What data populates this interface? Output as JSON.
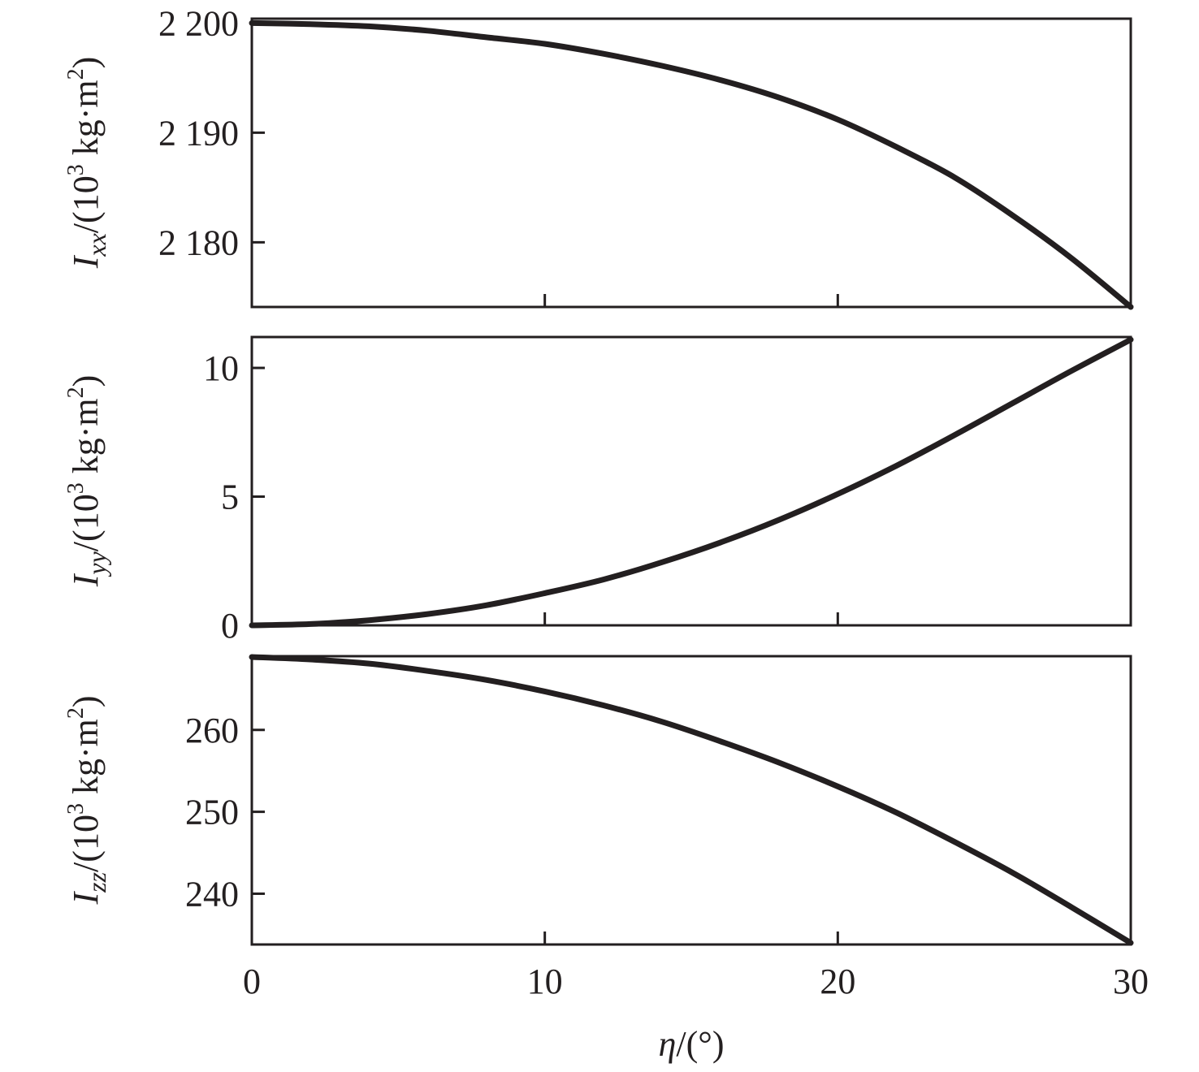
{
  "chart_data": [
    {
      "type": "line",
      "ylabel": {
        "symbol": "I",
        "subscript": "xx",
        "unit_prefix": "/(10",
        "unit_exp": "3",
        "unit_suffix": " kg·m",
        "unit_exp2": "2",
        "unit_close": ")"
      },
      "xlim": [
        0,
        30
      ],
      "ylim": [
        2174.1,
        2200.4
      ],
      "yticks": [
        2180,
        2190,
        2200
      ],
      "ytick_labels": [
        "2 180",
        "2 190",
        "2 200"
      ],
      "xticks": [
        10,
        20
      ],
      "series": [
        {
          "x": [
            0,
            2,
            4,
            6,
            8,
            10,
            12,
            14,
            16,
            18,
            20,
            22,
            24,
            26,
            28,
            30
          ],
          "y": [
            2200.0,
            2199.9,
            2199.7,
            2199.3,
            2198.7,
            2198.1,
            2197.2,
            2196.1,
            2194.8,
            2193.2,
            2191.2,
            2188.7,
            2185.9,
            2182.4,
            2178.5,
            2174.1
          ]
        }
      ]
    },
    {
      "type": "line",
      "ylabel": {
        "symbol": "I",
        "subscript": "yy",
        "unit_prefix": "/(10",
        "unit_exp": "3",
        "unit_suffix": " kg·m",
        "unit_exp2": "2",
        "unit_close": ")"
      },
      "xlim": [
        0,
        30
      ],
      "ylim": [
        0,
        11.2
      ],
      "yticks": [
        0,
        5,
        10
      ],
      "ytick_labels": [
        "0",
        "5",
        "10"
      ],
      "xticks": [
        10,
        20
      ],
      "series": [
        {
          "x": [
            0,
            2,
            4,
            6,
            8,
            10,
            12,
            14,
            16,
            18,
            20,
            22,
            24,
            26,
            28,
            30
          ],
          "y": [
            0,
            0.05,
            0.2,
            0.44,
            0.78,
            1.25,
            1.78,
            2.45,
            3.22,
            4.1,
            5.1,
            6.2,
            7.4,
            8.65,
            9.9,
            11.1
          ]
        }
      ]
    },
    {
      "type": "line",
      "ylabel": {
        "symbol": "I",
        "subscript": "zz",
        "unit_prefix": "/(10",
        "unit_exp": "3",
        "unit_suffix": " kg·m",
        "unit_exp2": "2",
        "unit_close": ")"
      },
      "xlim": [
        0,
        30
      ],
      "ylim": [
        233.8,
        269.0
      ],
      "yticks": [
        240,
        250,
        260
      ],
      "ytick_labels": [
        "240",
        "250",
        "260"
      ],
      "xticks": [
        0,
        10,
        20,
        30
      ],
      "xtick_labels": [
        "0",
        "10",
        "20",
        "30"
      ],
      "xlabel": {
        "symbol": "η",
        "unit": "/(°)"
      },
      "series": [
        {
          "x": [
            0,
            2,
            4,
            6,
            8,
            10,
            12,
            14,
            16,
            18,
            20,
            22,
            24,
            26,
            28,
            30
          ],
          "y": [
            268.9,
            268.6,
            268.1,
            267.2,
            266.1,
            264.7,
            263.0,
            261.0,
            258.6,
            256.0,
            253.1,
            249.9,
            246.3,
            242.5,
            238.3,
            234.0
          ]
        }
      ]
    }
  ]
}
